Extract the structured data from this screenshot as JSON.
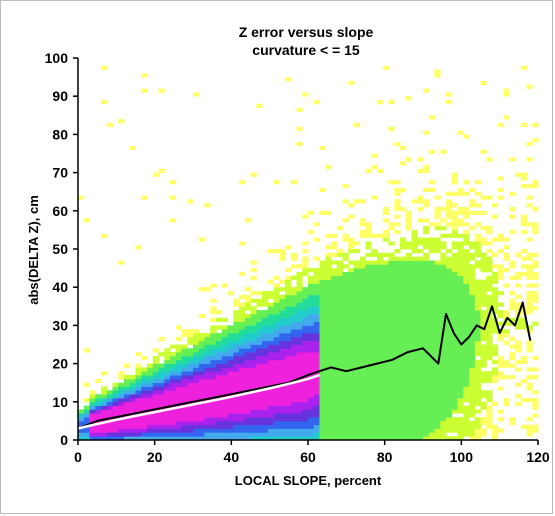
{
  "chart_data": {
    "type": "heatmap",
    "title": "Z error versus slope",
    "subtitle": "curvature < = 15",
    "xlabel": "LOCAL SLOPE, percent",
    "ylabel": "abs(DELTA Z), cm",
    "xlim": [
      0,
      120
    ],
    "ylim": [
      0,
      100
    ],
    "x_ticks": [
      "0",
      "20",
      "40",
      "60",
      "80",
      "100",
      "120"
    ],
    "y_ticks": [
      "0",
      "10",
      "20",
      "30",
      "40",
      "50",
      "60",
      "70",
      "80",
      "90",
      "100"
    ],
    "grid": false,
    "legend": "none",
    "colormap": [
      "#ffff66",
      "#ccff33",
      "#66ee55",
      "#22dd99",
      "#22cccc",
      "#44aaee",
      "#3366ee",
      "#6633dd",
      "#aa22ee",
      "#ee22dd"
    ],
    "series": [
      {
        "kind": "line",
        "color": "#000000",
        "x": [
          0,
          5,
          10,
          15,
          20,
          25,
          30,
          35,
          40,
          45,
          50,
          55,
          60,
          63,
          66,
          70,
          74,
          78,
          82,
          86,
          90,
          94,
          96,
          98,
          100,
          102,
          104,
          106,
          108,
          110,
          112,
          114,
          116,
          118
        ],
        "values": [
          3,
          5,
          6,
          7,
          8,
          9,
          10,
          11,
          12,
          13,
          14,
          15,
          17,
          18,
          19,
          18,
          19,
          20,
          21,
          23,
          24,
          20,
          33,
          28,
          25,
          27,
          30,
          29,
          35,
          28,
          32,
          30,
          36,
          26
        ]
      },
      {
        "kind": "line",
        "color": "#ffffff",
        "x": [
          0,
          5,
          10,
          15,
          20,
          25,
          30,
          35,
          40,
          45,
          50,
          55,
          60,
          63
        ],
        "values": [
          3,
          4.2,
          5.3,
          6.3,
          7.3,
          8.3,
          9.3,
          10.3,
          11.3,
          12.4,
          13.5,
          14.7,
          16,
          17
        ]
      }
    ]
  }
}
